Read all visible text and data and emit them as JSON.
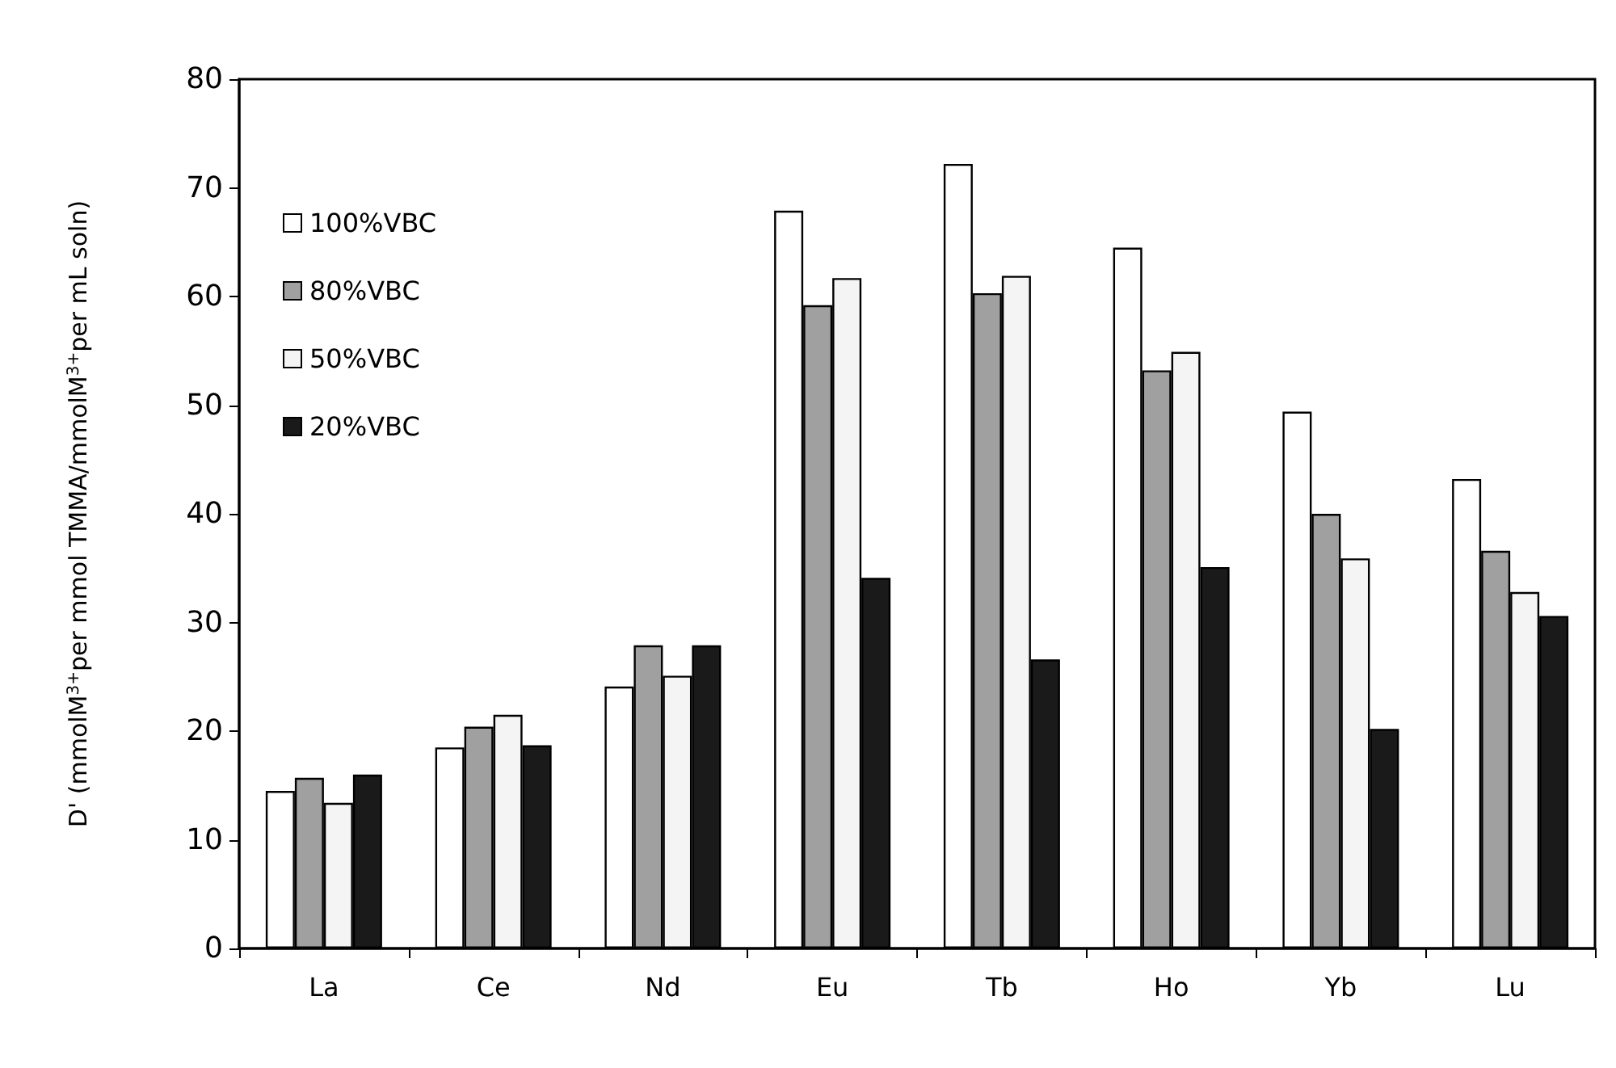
{
  "chart_data": {
    "type": "bar",
    "ylabel": "D' (mmolM$^{3+}$per mmol TMMA/mmolM$^{3+}$per mL soln)",
    "categories": [
      "La",
      "Ce",
      "Nd",
      "Eu",
      "Tb",
      "Ho",
      "Yb",
      "Lu"
    ],
    "series": [
      {
        "name": "100%VBC",
        "color": "#ffffff",
        "values": [
          14.5,
          18.5,
          24.1,
          67.9,
          72.2,
          64.5,
          49.4,
          43.2
        ]
      },
      {
        "name": "80%VBC",
        "color": "#a0a0a0",
        "values": [
          15.7,
          20.4,
          27.9,
          59.2,
          60.3,
          53.2,
          40.0,
          36.6
        ]
      },
      {
        "name": "50%VBC",
        "color": "#f4f4f4",
        "values": [
          13.4,
          21.5,
          25.1,
          61.7,
          61.9,
          54.9,
          35.9,
          32.8
        ]
      },
      {
        "name": "20%VBC",
        "color": "#1a1a1a",
        "values": [
          16.0,
          18.7,
          27.9,
          34.1,
          26.6,
          35.1,
          20.2,
          30.6
        ]
      }
    ],
    "ylim": [
      0,
      80
    ],
    "yticks": [
      0,
      10,
      20,
      30,
      40,
      50,
      60,
      70,
      80
    ],
    "grid": false,
    "legend": "top left"
  }
}
